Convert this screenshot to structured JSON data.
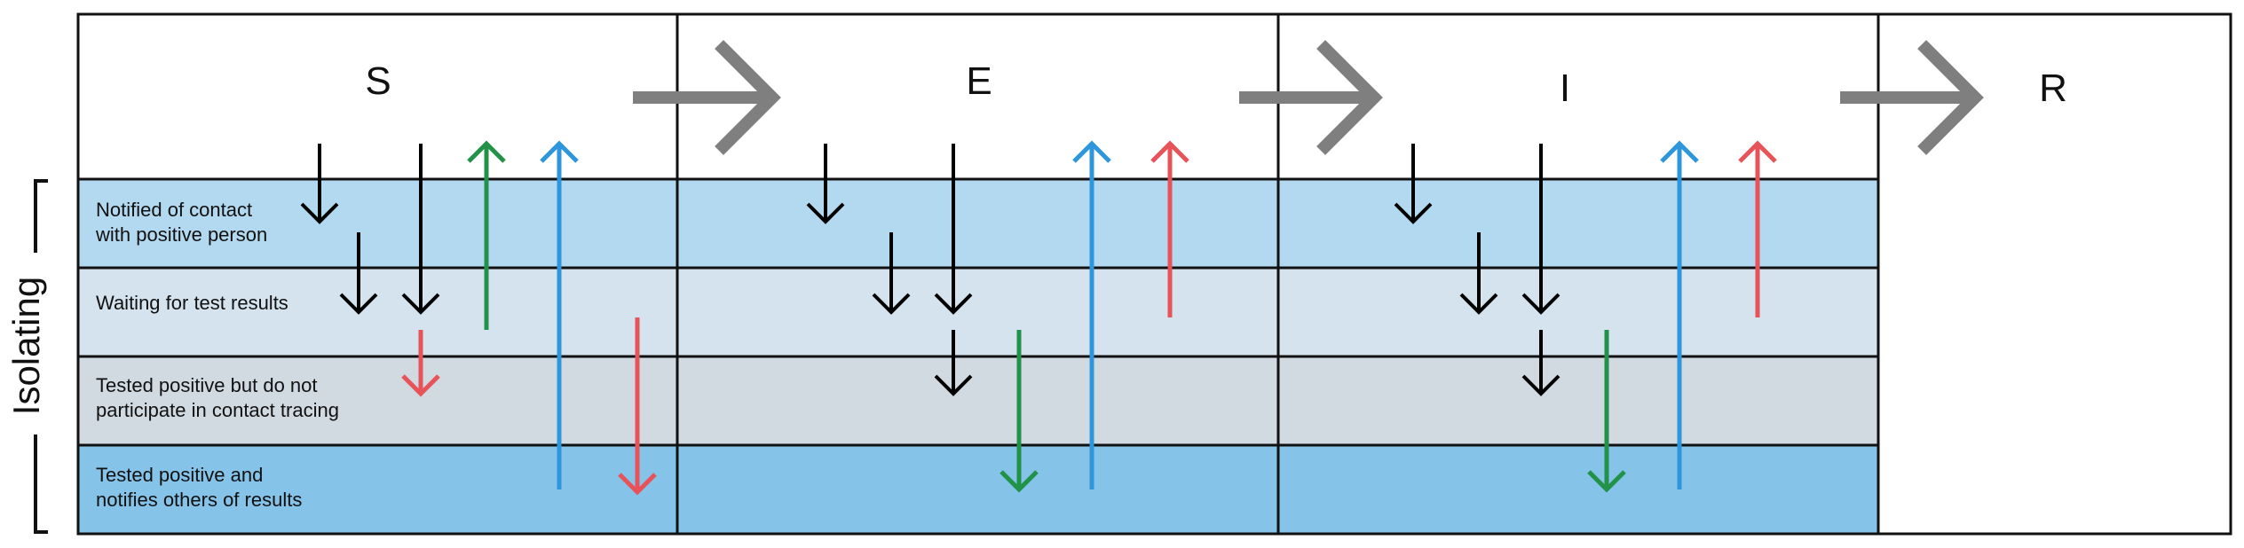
{
  "stages": [
    "S",
    "E",
    "I",
    "R"
  ],
  "rows": [
    {
      "lines": [
        "Notified of contact",
        "with positive person"
      ]
    },
    {
      "lines": [
        "Waiting for test results"
      ]
    },
    {
      "lines": [
        "Tested positive but do not",
        "participate in contact tracing"
      ]
    },
    {
      "lines": [
        "Tested positive and",
        "notifies others of results"
      ]
    }
  ],
  "side_label": "Isolating",
  "colors": {
    "row_fills": [
      "#b3d9f0",
      "#d4e3ee",
      "#d1d9e1",
      "#85c3e8"
    ],
    "arrow_black": "#000000",
    "arrow_green": "#229249",
    "arrow_blue": "#2e96dc",
    "arrow_red": "#e8535a",
    "stage_arrow": "#7f7f7f"
  }
}
